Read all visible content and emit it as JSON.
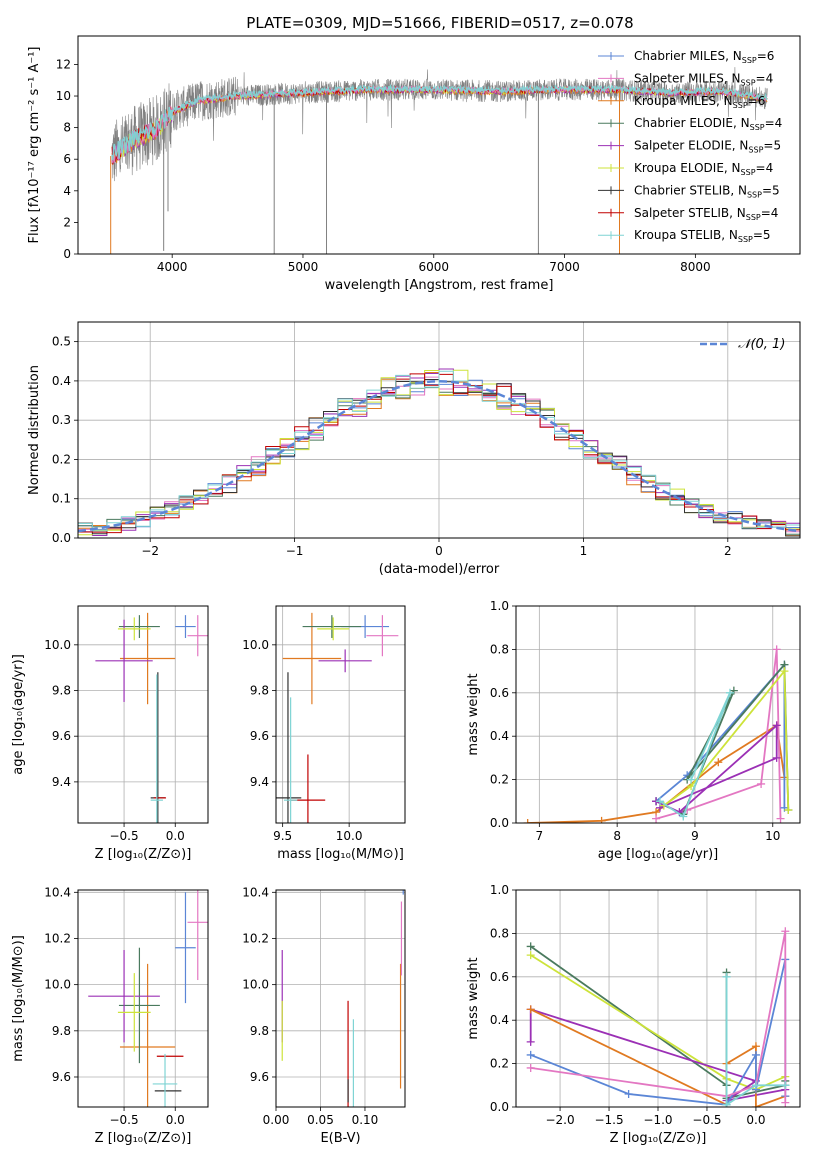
{
  "figure": {
    "title": "PLATE=0309, MJD=51666, FIBERID=0517, z=0.078"
  },
  "colors": {
    "chabrier_miles": "#5b86d6",
    "salpeter_miles": "#e377c2",
    "kroupa_miles": "#e07a21",
    "chabrier_elodie": "#4a7a5e",
    "salpeter_elodie": "#9b30b5",
    "kroupa_elodie": "#cde33a",
    "chabrier_stelib": "#333333",
    "salpeter_stelib": "#c00000",
    "kroupa_stelib": "#7fd4d4",
    "data_gray": "#808080"
  },
  "chart_data": [
    {
      "id": "spectrum",
      "type": "line",
      "xlabel": "wavelength [Angstrom, rest frame]",
      "ylabel": "Flux [fλ10⁻¹⁷ erg cm⁻² s⁻¹ A⁻¹]",
      "xlim": [
        3280,
        8800
      ],
      "ylim": [
        0,
        13.8
      ],
      "xticks": [
        4000,
        5000,
        6000,
        7000,
        8000
      ],
      "yticks": [
        0,
        2,
        4,
        6,
        8,
        10,
        12
      ],
      "legend_position": "right",
      "legend": [
        {
          "name": "Chabrier MILES",
          "nssp": "6",
          "color_key": "chabrier_miles"
        },
        {
          "name": "Salpeter MILES",
          "nssp": "4",
          "color_key": "salpeter_miles"
        },
        {
          "name": "Kroupa MILES",
          "nssp": "6",
          "color_key": "kroupa_miles"
        },
        {
          "name": "Chabrier ELODIE",
          "nssp": "4",
          "color_key": "chabrier_elodie"
        },
        {
          "name": "Salpeter ELODIE",
          "nssp": "5",
          "color_key": "salpeter_elodie"
        },
        {
          "name": "Kroupa ELODIE",
          "nssp": "4",
          "color_key": "kroupa_elodie"
        },
        {
          "name": "Chabrier STELIB",
          "nssp": "5",
          "color_key": "chabrier_stelib"
        },
        {
          "name": "Salpeter STELIB",
          "nssp": "4",
          "color_key": "salpeter_stelib"
        },
        {
          "name": "Kroupa STELIB",
          "nssp": "5",
          "color_key": "kroupa_stelib"
        }
      ],
      "continuum": [
        [
          3540,
          6.2
        ],
        [
          3700,
          7.2
        ],
        [
          3900,
          8.0
        ],
        [
          4000,
          9.0
        ],
        [
          4200,
          9.7
        ],
        [
          4500,
          10.0
        ],
        [
          5000,
          10.2
        ],
        [
          5500,
          10.4
        ],
        [
          6000,
          10.4
        ],
        [
          6500,
          10.3
        ],
        [
          7000,
          10.4
        ],
        [
          7400,
          10.4
        ],
        [
          7800,
          10.2
        ],
        [
          8200,
          10.3
        ],
        [
          8550,
          9.8
        ]
      ],
      "absorption_lines": [
        [
          3530,
          0
        ],
        [
          3935,
          0.2
        ],
        [
          3968,
          2.7
        ],
        [
          4780,
          0
        ],
        [
          5180,
          0
        ],
        [
          6800,
          0
        ],
        [
          7420,
          0
        ]
      ]
    },
    {
      "id": "residuals",
      "type": "histogram",
      "xlabel": "(data-model)/error",
      "ylabel": "Normed distribution",
      "xlim": [
        -2.5,
        2.5
      ],
      "ylim": [
        0,
        0.55
      ],
      "xticks": [
        -2,
        -1,
        0,
        1,
        2
      ],
      "yticks": [
        0.0,
        0.1,
        0.2,
        0.3,
        0.4,
        0.5
      ],
      "bin_width": 0.1,
      "legend": "𝒩(0, 1)",
      "legend_position": "top-right",
      "gaussian": {
        "mean": 0,
        "sigma": 1,
        "color": "#5b86d6"
      }
    },
    {
      "id": "age_vs_z",
      "type": "scatter",
      "xlabel": "Z [log₁₀(Z/Z⊙)]",
      "ylabel": "age  [log₁₀(age/yr)]",
      "xlim": [
        -0.95,
        0.32
      ],
      "ylim": [
        9.22,
        10.17
      ],
      "xticks": [
        -0.5,
        0.0
      ],
      "yticks": [
        9.4,
        9.6,
        9.8,
        10.0
      ],
      "points": [
        {
          "color_key": "chabrier_miles",
          "x": 0.1,
          "y": 10.08,
          "xerr": 0.1,
          "yerr": 0.05
        },
        {
          "color_key": "salpeter_miles",
          "x": 0.22,
          "y": 10.04,
          "xerr": 0.1,
          "yerr": 0.09
        },
        {
          "color_key": "kroupa_miles",
          "x": -0.27,
          "y": 9.94,
          "xerr": 0.27,
          "yerr": 0.2
        },
        {
          "color_key": "chabrier_elodie",
          "x": -0.35,
          "y": 10.08,
          "xerr": 0.2,
          "yerr": 0.05
        },
        {
          "color_key": "salpeter_elodie",
          "x": -0.5,
          "y": 9.93,
          "xerr": 0.28,
          "yerr": 0.18
        },
        {
          "color_key": "kroupa_elodie",
          "x": -0.4,
          "y": 10.07,
          "xerr": 0.16,
          "yerr": 0.05
        },
        {
          "color_key": "chabrier_stelib",
          "x": -0.17,
          "y": 9.33,
          "xerr": 0.07,
          "yerr": 0.55
        },
        {
          "color_key": "salpeter_stelib",
          "x": -0.15,
          "y": 9.33,
          "xerr": 0.06,
          "yerr": 0.0
        },
        {
          "color_key": "kroupa_stelib",
          "x": -0.18,
          "y": 9.32,
          "xerr": 0.06,
          "yerr": 0.55
        }
      ]
    },
    {
      "id": "age_vs_mass",
      "type": "scatter",
      "xlabel": "mass [log₁₀(M/M⊙)]",
      "ylabel": "",
      "xlim": [
        9.45,
        10.42
      ],
      "ylim": [
        9.22,
        10.17
      ],
      "xticks": [
        9.5,
        10.0
      ],
      "yticks": [
        9.4,
        9.6,
        9.8,
        10.0
      ],
      "points": [
        {
          "color_key": "chabrier_miles",
          "x": 10.12,
          "y": 10.08,
          "xerr": 0.18,
          "yerr": 0.05
        },
        {
          "color_key": "salpeter_miles",
          "x": 10.25,
          "y": 10.04,
          "xerr": 0.12,
          "yerr": 0.09
        },
        {
          "color_key": "kroupa_miles",
          "x": 9.72,
          "y": 9.94,
          "xerr": 0.22,
          "yerr": 0.2
        },
        {
          "color_key": "chabrier_elodie",
          "x": 9.87,
          "y": 10.08,
          "xerr": 0.22,
          "yerr": 0.05
        },
        {
          "color_key": "salpeter_elodie",
          "x": 9.97,
          "y": 9.93,
          "xerr": 0.2,
          "yerr": 0.05
        },
        {
          "color_key": "kroupa_elodie",
          "x": 9.88,
          "y": 10.07,
          "xerr": 0.12,
          "yerr": 0.05
        },
        {
          "color_key": "chabrier_stelib",
          "x": 9.54,
          "y": 9.33,
          "xerr": 0.1,
          "yerr": 0.55
        },
        {
          "color_key": "salpeter_stelib",
          "x": 9.69,
          "y": 9.32,
          "xerr": 0.13,
          "yerr": 0.2
        },
        {
          "color_key": "kroupa_stelib",
          "x": 9.56,
          "y": 9.32,
          "xerr": 0.05,
          "yerr": 0.45
        }
      ]
    },
    {
      "id": "weight_vs_age",
      "type": "line",
      "xlabel": "age  [log₁₀(age/yr)]",
      "ylabel": "mass weight",
      "xlim": [
        6.7,
        10.35
      ],
      "ylim": [
        0,
        1
      ],
      "xticks": [
        7,
        8,
        9,
        10
      ],
      "yticks": [
        0.0,
        0.2,
        0.4,
        0.6,
        0.8,
        1.0
      ],
      "series": [
        {
          "color_key": "kroupa_miles",
          "points": [
            [
              6.85,
              0.0
            ],
            [
              7.8,
              0.01
            ],
            [
              8.5,
              0.05
            ],
            [
              9.3,
              0.28
            ],
            [
              10.05,
              0.45
            ],
            [
              10.15,
              0.21
            ]
          ]
        },
        {
          "color_key": "salpeter_miles",
          "points": [
            [
              8.5,
              0.02
            ],
            [
              8.9,
              0.06
            ],
            [
              9.85,
              0.18
            ],
            [
              10.05,
              0.8
            ],
            [
              10.1,
              0.02
            ]
          ]
        },
        {
          "color_key": "chabrier_miles",
          "points": [
            [
              8.5,
              0.1
            ],
            [
              8.9,
              0.22
            ],
            [
              10.15,
              0.73
            ],
            [
              10.15,
              0.07
            ]
          ]
        },
        {
          "color_key": "chabrier_elodie",
          "points": [
            [
              8.5,
              0.1
            ],
            [
              8.85,
              0.04
            ],
            [
              9.5,
              0.61
            ],
            [
              8.9,
              0.2
            ],
            [
              10.15,
              0.73
            ],
            [
              10.2,
              0.06
            ]
          ]
        },
        {
          "color_key": "salpeter_elodie",
          "points": [
            [
              8.5,
              0.1
            ],
            [
              8.8,
              0.05
            ],
            [
              10.05,
              0.45
            ],
            [
              10.05,
              0.3
            ],
            [
              8.55,
              0.07
            ]
          ]
        },
        {
          "color_key": "kroupa_elodie",
          "points": [
            [
              8.6,
              0.08
            ],
            [
              8.95,
              0.17
            ],
            [
              10.15,
              0.7
            ],
            [
              10.2,
              0.06
            ]
          ]
        },
        {
          "color_key": "kroupa_stelib",
          "points": [
            [
              8.55,
              0.1
            ],
            [
              8.85,
              0.03
            ],
            [
              9.45,
              0.6
            ],
            [
              8.95,
              0.2
            ]
          ]
        }
      ]
    },
    {
      "id": "mass_vs_z",
      "type": "scatter",
      "xlabel": "Z [log₁₀(Z/Z⊙)]",
      "ylabel": "mass [log₁₀(M/M⊙)]",
      "xlim": [
        -0.95,
        0.32
      ],
      "ylim": [
        9.47,
        10.41
      ],
      "xticks": [
        -0.5,
        0.0
      ],
      "yticks": [
        9.6,
        9.8,
        10.0,
        10.2,
        10.4
      ],
      "points": [
        {
          "color_key": "chabrier_miles",
          "x": 0.1,
          "y": 10.16,
          "xerr": 0.1,
          "yerr": 0.24
        },
        {
          "color_key": "salpeter_miles",
          "x": 0.22,
          "y": 10.27,
          "xerr": 0.1,
          "yerr": 0.25
        },
        {
          "color_key": "kroupa_miles",
          "x": -0.27,
          "y": 9.73,
          "xerr": 0.27,
          "yerr": 0.36
        },
        {
          "color_key": "chabrier_elodie",
          "x": -0.35,
          "y": 9.91,
          "xerr": 0.2,
          "yerr": 0.25
        },
        {
          "color_key": "salpeter_elodie",
          "x": -0.5,
          "y": 9.95,
          "xerr": 0.35,
          "yerr": 0.2
        },
        {
          "color_key": "kroupa_elodie",
          "x": -0.4,
          "y": 9.88,
          "xerr": 0.16,
          "yerr": 0.17
        },
        {
          "color_key": "chabrier_stelib",
          "x": -0.07,
          "y": 9.54,
          "xerr": 0.13,
          "yerr": 0.0
        },
        {
          "color_key": "salpeter_stelib",
          "x": -0.05,
          "y": 9.69,
          "xerr": 0.13,
          "yerr": 0.0
        },
        {
          "color_key": "kroupa_stelib",
          "x": -0.1,
          "y": 9.57,
          "xerr": 0.12,
          "yerr": 0.13
        }
      ]
    },
    {
      "id": "mass_vs_ebv",
      "type": "scatter",
      "xlabel": "E(B-V)",
      "ylabel": "",
      "xlim": [
        0.0,
        0.145
      ],
      "ylim": [
        9.47,
        10.41
      ],
      "xticks": [
        0.0,
        0.05,
        0.1
      ],
      "xtick_labels": [
        "0.00",
        "0.05",
        "0.10"
      ],
      "yticks": [
        9.6,
        9.8,
        10.0,
        10.2,
        10.4
      ],
      "points": [
        {
          "color_key": "salpeter_elodie",
          "x": 0.007,
          "y": 9.95,
          "xerr": 0.0,
          "yerr": 0.2
        },
        {
          "color_key": "kroupa_elodie",
          "x": 0.007,
          "y": 9.8,
          "xerr": 0.0,
          "yerr": 0.13
        },
        {
          "color_key": "salpeter_stelib",
          "x": 0.081,
          "y": 9.7,
          "xerr": 0.0,
          "yerr": 0.23
        },
        {
          "color_key": "chabrier_stelib",
          "x": 0.081,
          "y": 9.54,
          "xerr": 0.0,
          "yerr": 0.05
        },
        {
          "color_key": "kroupa_stelib",
          "x": 0.087,
          "y": 9.6,
          "xerr": 0.0,
          "yerr": 0.25
        },
        {
          "color_key": "kroupa_miles",
          "x": 0.14,
          "y": 9.82,
          "xerr": 0.0,
          "yerr": 0.27
        },
        {
          "color_key": "salpeter_miles",
          "x": 0.141,
          "y": 10.2,
          "xerr": 0.0,
          "yerr": 0.16
        },
        {
          "color_key": "chabrier_miles",
          "x": 0.143,
          "y": 10.4,
          "xerr": 0.0,
          "yerr": 0.01
        }
      ]
    },
    {
      "id": "weight_vs_z",
      "type": "line",
      "xlabel": "Z [log₁₀(Z/Z⊙)]",
      "ylabel": "mass weight",
      "xlim": [
        -2.45,
        0.45
      ],
      "ylim": [
        0,
        1
      ],
      "xticks": [
        -2.0,
        -1.5,
        -1.0,
        -0.5,
        0.0
      ],
      "yticks": [
        0.0,
        0.2,
        0.4,
        0.6,
        0.8,
        1.0
      ],
      "series": [
        {
          "color_key": "chabrier_elodie",
          "points": [
            [
              -2.3,
              0.74
            ],
            [
              -0.3,
              0.1
            ],
            [
              -0.3,
              0.62
            ],
            [
              -0.3,
              0.04
            ],
            [
              0.3,
              0.1
            ],
            [
              0.3,
              0.12
            ]
          ]
        },
        {
          "color_key": "kroupa_elodie",
          "points": [
            [
              -2.3,
              0.7
            ],
            [
              -0.3,
              0.13
            ],
            [
              0.0,
              0.08
            ],
            [
              0.3,
              0.14
            ]
          ]
        },
        {
          "color_key": "salpeter_elodie",
          "points": [
            [
              -2.3,
              0.3
            ],
            [
              -2.3,
              0.45
            ],
            [
              0.0,
              0.12
            ],
            [
              -0.3,
              0.03
            ],
            [
              0.3,
              0.08
            ]
          ]
        },
        {
          "color_key": "kroupa_miles",
          "points": [
            [
              -2.3,
              0.45
            ],
            [
              -0.3,
              0.01
            ],
            [
              -0.3,
              0.2
            ],
            [
              0.0,
              0.28
            ],
            [
              0.0,
              0.0
            ],
            [
              0.3,
              0.05
            ]
          ]
        },
        {
          "color_key": "chabrier_miles",
          "points": [
            [
              -2.3,
              0.24
            ],
            [
              -1.3,
              0.06
            ],
            [
              -0.3,
              0.01
            ],
            [
              0.0,
              0.24
            ],
            [
              0.0,
              0.08
            ],
            [
              0.3,
              0.68
            ],
            [
              0.3,
              0.05
            ]
          ]
        },
        {
          "color_key": "salpeter_miles",
          "points": [
            [
              -2.3,
              0.18
            ],
            [
              -0.3,
              0.05
            ],
            [
              0.0,
              0.1
            ],
            [
              0.3,
              0.81
            ],
            [
              0.3,
              0.02
            ]
          ]
        },
        {
          "color_key": "kroupa_stelib",
          "points": [
            [
              -0.3,
              0.6
            ],
            [
              -0.3,
              0.01
            ],
            [
              0.0,
              0.1
            ],
            [
              0.3,
              0.1
            ]
          ]
        }
      ]
    }
  ]
}
